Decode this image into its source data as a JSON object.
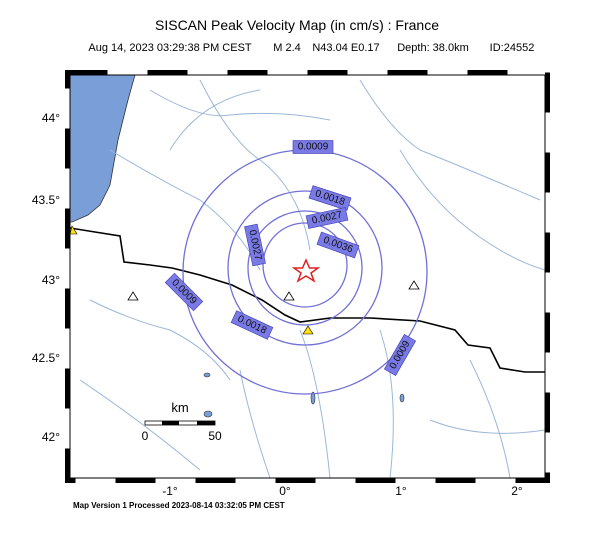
{
  "header": {
    "title": "SISCAN Peak Velocity Map (in cm/s) : France",
    "subtitle": [
      "Aug 14, 2023 03:29:38 PM CEST",
      "M 2.4",
      "N43.04 E0.17",
      "Depth: 38.0km",
      "ID:24552"
    ]
  },
  "lat_labels": [
    "44°",
    "43.5°",
    "43°",
    "42.5°",
    "42°"
  ],
  "lon_labels": [
    "-1°",
    "0°",
    "1°",
    "2°"
  ],
  "contours": [
    "0.0009",
    "0.0018",
    "0.0027",
    "0.0036"
  ],
  "scale": {
    "unit": "km",
    "start": "0",
    "end": "50"
  },
  "footer": "Map Version 1 Processed 2023-08-14 03:32:05 PM CEST"
}
